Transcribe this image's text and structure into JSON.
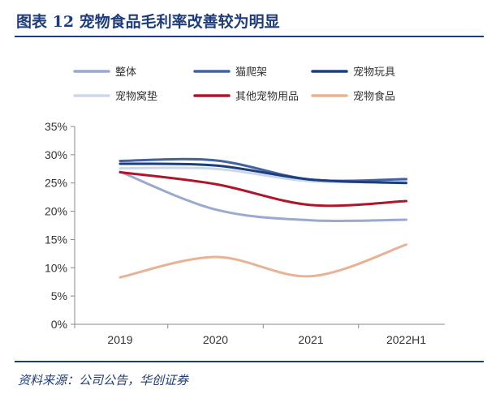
{
  "title": "图表 12  宠物食品毛利率改善较为明显",
  "source": "资料来源：公司公告，华创证券",
  "chart_data": {
    "type": "line",
    "categories": [
      "2019",
      "2020",
      "2021",
      "2022H1"
    ],
    "ylim": [
      0,
      0.35
    ],
    "yticks": [
      "0%",
      "5%",
      "10%",
      "15%",
      "20%",
      "25%",
      "30%",
      "35%"
    ],
    "grid": false,
    "legend_position": "top",
    "series": [
      {
        "name": "整体",
        "color": "#9aa9d2",
        "values": [
          0.27,
          0.203,
          0.184,
          0.185
        ]
      },
      {
        "name": "猫爬架",
        "color": "#4262a3",
        "values": [
          0.289,
          0.29,
          0.256,
          0.257
        ]
      },
      {
        "name": "宠物玩具",
        "color": "#1b3f7c",
        "values": [
          0.284,
          0.281,
          0.256,
          0.25
        ]
      },
      {
        "name": "宠物窝垫",
        "color": "#cdd7ea",
        "values": [
          0.276,
          0.275,
          0.253,
          0.254
        ]
      },
      {
        "name": "其他宠物用品",
        "color": "#b0162b",
        "values": [
          0.269,
          0.248,
          0.211,
          0.218
        ]
      },
      {
        "name": "宠物食品",
        "color": "#e8b394",
        "values": [
          0.083,
          0.119,
          0.085,
          0.141
        ]
      }
    ]
  }
}
